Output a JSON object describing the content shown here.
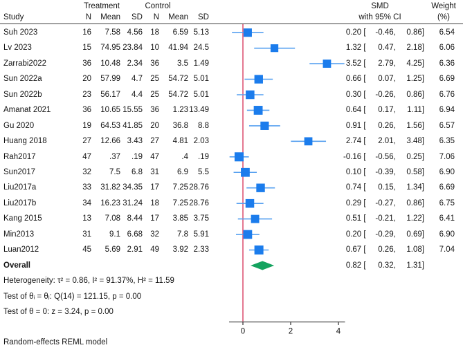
{
  "header": {
    "treatment": "Treatment",
    "control": "Control",
    "study": "Study",
    "n": "N",
    "mean": "Mean",
    "sd": "SD",
    "smd_line1": "SMD",
    "smd_line2": "with 95% CI",
    "weight_line1": "Weight",
    "weight_line2": "(%)"
  },
  "stats": {
    "overall_label": "Overall",
    "heterogeneity": "Heterogeneity: τ² = 0.86, I² = 91.37%, H² = 11.59",
    "test_theta_ij": "Test of θᵢ = θⱼ: Q(14) = 121.15, p = 0.00",
    "test_theta_zero": "Test of θ = 0: z = 3.24, p = 0.00"
  },
  "footer": {
    "model_note": "Random-effects REML model"
  },
  "colors": {
    "marker_fill": "#1b7cec",
    "ci_line": "#56a0f0",
    "ref_line": "#e0607c",
    "diamond_fill": "#14a35f",
    "axis_line": "#6b6b6b",
    "tick": "#4a4a4a",
    "text": "#141414",
    "header_rule": "#3c3c3c"
  },
  "chart_data": {
    "type": "forest",
    "x_ticks": [
      0,
      2,
      4
    ],
    "x_range": [
      -0.6,
      4.3
    ],
    "ref_line_x": 0,
    "effect_label": "SMD",
    "studies": [
      {
        "study": "Suh 2023",
        "treatment": {
          "n": "16",
          "mean": "7.58",
          "sd": "4.56"
        },
        "control": {
          "n": "18",
          "mean": "6.59",
          "sd": "5.13"
        },
        "smd": 0.2,
        "ci_low": -0.46,
        "ci_high": 0.86,
        "est_label": "0.20",
        "low_label": "-0.46",
        "high_label": "0.86",
        "weight": "6.54"
      },
      {
        "study": "Lv 2023",
        "treatment": {
          "n": "15",
          "mean": "74.95",
          "sd": "23.84"
        },
        "control": {
          "n": "10",
          "mean": "41.94",
          "sd": "24.5"
        },
        "smd": 1.32,
        "ci_low": 0.47,
        "ci_high": 2.18,
        "est_label": "1.32",
        "low_label": "0.47",
        "high_label": "2.18",
        "weight": "6.06"
      },
      {
        "study": "Zarrabi2022",
        "treatment": {
          "n": "36",
          "mean": "10.48",
          "sd": "2.34"
        },
        "control": {
          "n": "36",
          "mean": "3.5",
          "sd": "1.49"
        },
        "smd": 3.52,
        "ci_low": 2.79,
        "ci_high": 4.25,
        "est_label": "3.52",
        "low_label": "2.79",
        "high_label": "4.25",
        "weight": "6.36"
      },
      {
        "study": "Sun 2022a",
        "treatment": {
          "n": "20",
          "mean": "57.99",
          "sd": "4.7"
        },
        "control": {
          "n": "25",
          "mean": "54.72",
          "sd": "5.01"
        },
        "smd": 0.66,
        "ci_low": 0.07,
        "ci_high": 1.25,
        "est_label": "0.66",
        "low_label": "0.07",
        "high_label": "1.25",
        "weight": "6.69"
      },
      {
        "study": "Sun 2022b",
        "treatment": {
          "n": "23",
          "mean": "56.17",
          "sd": "4.4"
        },
        "control": {
          "n": "25",
          "mean": "54.72",
          "sd": "5.01"
        },
        "smd": 0.3,
        "ci_low": -0.26,
        "ci_high": 0.86,
        "est_label": "0.30",
        "low_label": "-0.26",
        "high_label": "0.86",
        "weight": "6.76"
      },
      {
        "study": "Amanat 2021",
        "treatment": {
          "n": "36",
          "mean": "10.65",
          "sd": "15.55"
        },
        "control": {
          "n": "36",
          "mean": "1.23",
          "sd": "13.49"
        },
        "smd": 0.64,
        "ci_low": 0.17,
        "ci_high": 1.11,
        "est_label": "0.64",
        "low_label": "0.17",
        "high_label": "1.11",
        "weight": "6.94"
      },
      {
        "study": "Gu 2020",
        "treatment": {
          "n": "19",
          "mean": "64.53",
          "sd": "41.85"
        },
        "control": {
          "n": "20",
          "mean": "36.8",
          "sd": "8.8"
        },
        "smd": 0.91,
        "ci_low": 0.26,
        "ci_high": 1.56,
        "est_label": "0.91",
        "low_label": "0.26",
        "high_label": "1.56",
        "weight": "6.57"
      },
      {
        "study": "Huang 2018",
        "treatment": {
          "n": "27",
          "mean": "12.66",
          "sd": "3.43"
        },
        "control": {
          "n": "27",
          "mean": "4.81",
          "sd": "2.03"
        },
        "smd": 2.74,
        "ci_low": 2.01,
        "ci_high": 3.48,
        "est_label": "2.74",
        "low_label": "2.01",
        "high_label": "3.48",
        "weight": "6.35"
      },
      {
        "study": "Rah2017",
        "treatment": {
          "n": "47",
          "mean": ".37",
          "sd": ".19"
        },
        "control": {
          "n": "47",
          "mean": ".4",
          "sd": ".19"
        },
        "smd": -0.16,
        "ci_low": -0.56,
        "ci_high": 0.25,
        "est_label": "-0.16",
        "low_label": "-0.56",
        "high_label": "0.25",
        "weight": "7.06"
      },
      {
        "study": "Sun2017",
        "treatment": {
          "n": "32",
          "mean": "7.5",
          "sd": "6.8"
        },
        "control": {
          "n": "31",
          "mean": "6.9",
          "sd": "5.5"
        },
        "smd": 0.1,
        "ci_low": -0.39,
        "ci_high": 0.58,
        "est_label": "0.10",
        "low_label": "-0.39",
        "high_label": "0.58",
        "weight": "6.90"
      },
      {
        "study": "Liu2017a",
        "treatment": {
          "n": "33",
          "mean": "31.82",
          "sd": "34.35"
        },
        "control": {
          "n": "17",
          "mean": "7.25",
          "sd": "28.76"
        },
        "smd": 0.74,
        "ci_low": 0.15,
        "ci_high": 1.34,
        "est_label": "0.74",
        "low_label": "0.15",
        "high_label": "1.34",
        "weight": "6.69"
      },
      {
        "study": "Liu2017b",
        "treatment": {
          "n": "34",
          "mean": "16.23",
          "sd": "31.24"
        },
        "control": {
          "n": "18",
          "mean": "7.25",
          "sd": "28.76"
        },
        "smd": 0.29,
        "ci_low": -0.27,
        "ci_high": 0.86,
        "est_label": "0.29",
        "low_label": "-0.27",
        "high_label": "0.86",
        "weight": "6.75"
      },
      {
        "study": "Kang 2015",
        "treatment": {
          "n": "13",
          "mean": "7.08",
          "sd": "8.44"
        },
        "control": {
          "n": "17",
          "mean": "3.85",
          "sd": "3.75"
        },
        "smd": 0.51,
        "ci_low": -0.21,
        "ci_high": 1.22,
        "est_label": "0.51",
        "low_label": "-0.21",
        "high_label": "1.22",
        "weight": "6.41"
      },
      {
        "study": "Min2013",
        "treatment": {
          "n": "31",
          "mean": "9.1",
          "sd": "6.68"
        },
        "control": {
          "n": "32",
          "mean": "7.8",
          "sd": "5.91"
        },
        "smd": 0.2,
        "ci_low": -0.29,
        "ci_high": 0.69,
        "est_label": "0.20",
        "low_label": "-0.29",
        "high_label": "0.69",
        "weight": "6.90"
      },
      {
        "study": "Luan2012",
        "treatment": {
          "n": "45",
          "mean": "5.69",
          "sd": "2.91"
        },
        "control": {
          "n": "49",
          "mean": "3.92",
          "sd": "2.33"
        },
        "smd": 0.67,
        "ci_low": 0.26,
        "ci_high": 1.08,
        "est_label": "0.67",
        "low_label": "0.26",
        "high_label": "1.08",
        "weight": "7.04"
      }
    ],
    "overall": {
      "smd": 0.82,
      "ci_low": 0.32,
      "ci_high": 1.31,
      "est_label": "0.82",
      "low_label": "0.32",
      "high_label": "1.31"
    }
  }
}
